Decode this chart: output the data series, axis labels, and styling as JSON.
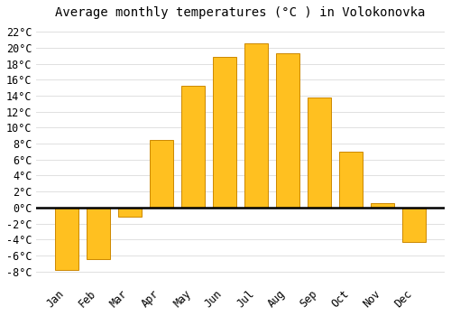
{
  "title": "Average monthly temperatures (°C ) in Volokonovka",
  "months": [
    "Jan",
    "Feb",
    "Mar",
    "Apr",
    "May",
    "Jun",
    "Jul",
    "Aug",
    "Sep",
    "Oct",
    "Nov",
    "Dec"
  ],
  "temperatures": [
    -7.8,
    -6.5,
    -1.2,
    8.5,
    15.2,
    18.8,
    20.5,
    19.3,
    13.8,
    7.0,
    0.6,
    -4.3
  ],
  "bar_color": "#FFC020",
  "bar_edge_color": "#CC8800",
  "background_color": "#FFFFFF",
  "ylim": [
    -9.5,
    23
  ],
  "yticks": [
    -8,
    -6,
    -4,
    -2,
    0,
    2,
    4,
    6,
    8,
    10,
    12,
    14,
    16,
    18,
    20,
    22
  ],
  "grid_color": "#E0E0E0",
  "title_fontsize": 10,
  "tick_fontsize": 8.5
}
